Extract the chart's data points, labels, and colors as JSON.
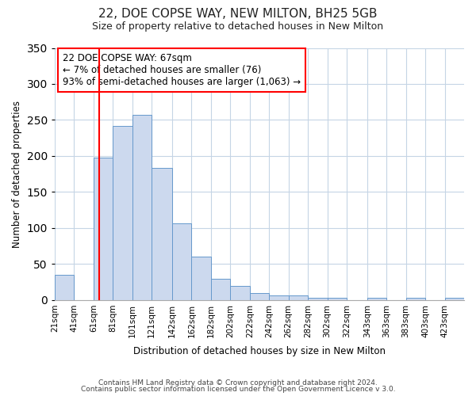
{
  "title": "22, DOE COPSE WAY, NEW MILTON, BH25 5GB",
  "subtitle": "Size of property relative to detached houses in New Milton",
  "xlabel": "Distribution of detached houses by size in New Milton",
  "ylabel": "Number of detached properties",
  "bar_labels": [
    "21sqm",
    "41sqm",
    "61sqm",
    "81sqm",
    "101sqm",
    "121sqm",
    "142sqm",
    "162sqm",
    "182sqm",
    "202sqm",
    "222sqm",
    "242sqm",
    "262sqm",
    "282sqm",
    "302sqm",
    "322sqm",
    "343sqm",
    "363sqm",
    "383sqm",
    "403sqm",
    "423sqm"
  ],
  "bar_values": [
    35,
    0,
    198,
    242,
    257,
    183,
    106,
    60,
    30,
    20,
    10,
    6,
    6,
    3,
    3,
    0,
    3,
    0,
    3,
    0,
    3
  ],
  "bar_color": "#ccd9ee",
  "bar_edge_color": "#6699cc",
  "ylim": [
    0,
    350
  ],
  "yticks": [
    0,
    50,
    100,
    150,
    200,
    250,
    300,
    350
  ],
  "property_line_x": 67,
  "annotation_box_text": "22 DOE COPSE WAY: 67sqm\n← 7% of detached houses are smaller (76)\n93% of semi-detached houses are larger (1,063) →",
  "footer_line1": "Contains HM Land Registry data © Crown copyright and database right 2024.",
  "footer_line2": "Contains public sector information licensed under the Open Government Licence v 3.0.",
  "background_color": "#ffffff",
  "grid_color": "#c5d5e5",
  "bin_edges": [
    21,
    41,
    61,
    81,
    101,
    121,
    142,
    162,
    182,
    202,
    222,
    242,
    262,
    282,
    302,
    322,
    343,
    363,
    383,
    403,
    423,
    443
  ]
}
